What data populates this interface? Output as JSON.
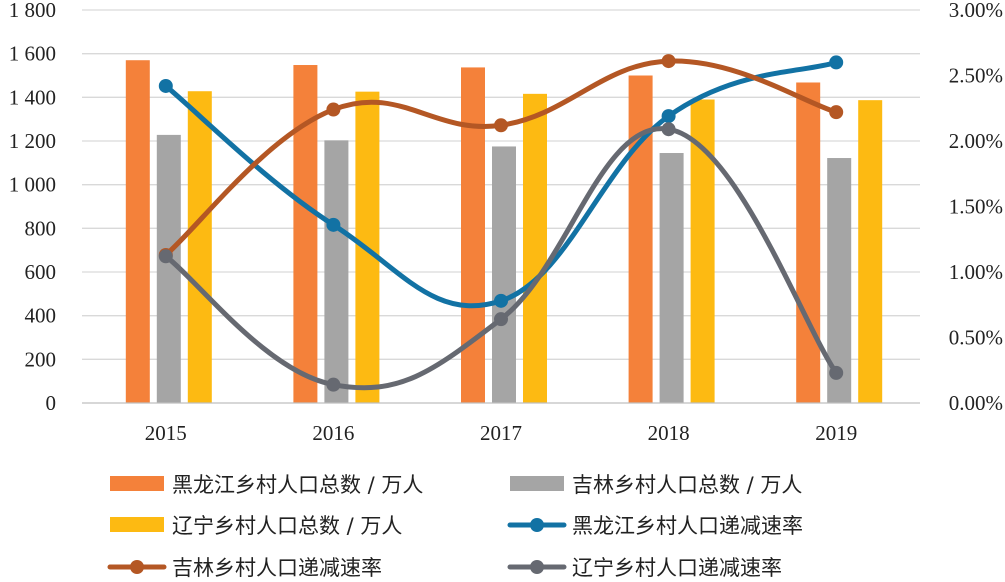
{
  "chart_data": {
    "type": "bar",
    "categories": [
      "2015",
      "2016",
      "2017",
      "2018",
      "2019"
    ],
    "bar_series": [
      {
        "name": "黑龙江乡村人口总数 / 万人",
        "color": "#F4813A",
        "values": [
          1570,
          1548,
          1537,
          1500,
          1468
        ]
      },
      {
        "name": "吉林乡村人口总数 / 万人",
        "color": "#A5A5A5",
        "values": [
          1228,
          1203,
          1175,
          1145,
          1122
        ]
      },
      {
        "name": "辽宁乡村人口总数 / 万人",
        "color": "#FDBA12",
        "values": [
          1428,
          1426,
          1416,
          1390,
          1387
        ]
      }
    ],
    "line_series": [
      {
        "name": "黑龙江乡村人口递减速率",
        "color": "#1272A4",
        "values": [
          2.42,
          1.36,
          0.78,
          2.19,
          2.6
        ]
      },
      {
        "name": "吉林乡村人口递减速率",
        "color": "#B45724",
        "values": [
          1.13,
          2.24,
          2.12,
          2.61,
          2.22
        ]
      },
      {
        "name": "辽宁乡村人口递减速率",
        "color": "#666971",
        "values": [
          1.12,
          0.14,
          0.64,
          2.09,
          0.23
        ]
      }
    ],
    "y_left": {
      "ylim": [
        0,
        1800
      ],
      "ticks": [
        "0",
        "200",
        "400",
        "600",
        "800",
        "1 000",
        "1 200",
        "1 400",
        "1 600",
        "1 800"
      ]
    },
    "y_right": {
      "ylim": [
        0,
        3.0
      ],
      "ticks": [
        "0.00%",
        "0.50%",
        "1.00%",
        "1.50%",
        "2.00%",
        "2.50%",
        "3.00%"
      ]
    },
    "grid": true,
    "legend_position": "bottom"
  }
}
